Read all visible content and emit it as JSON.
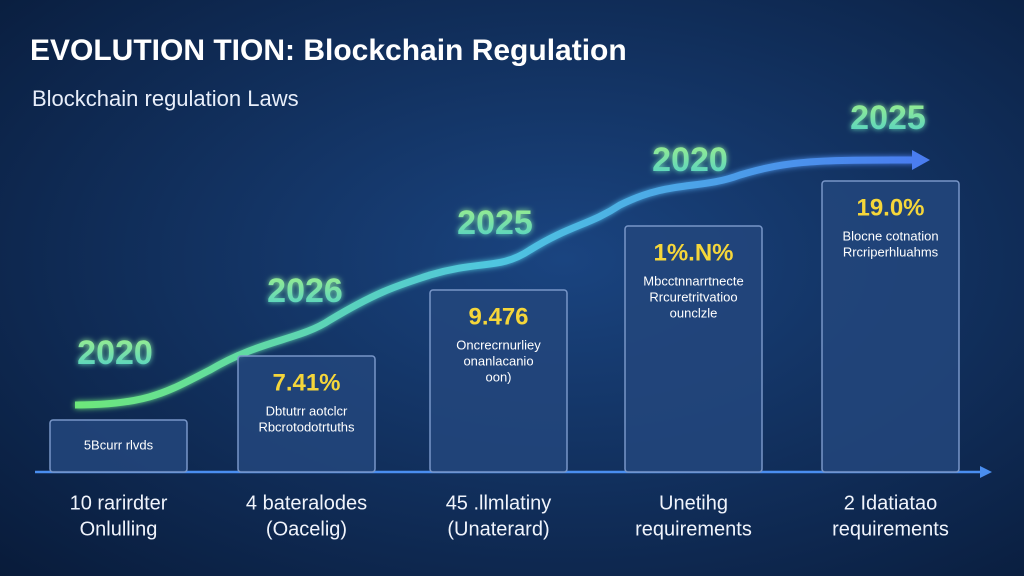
{
  "title": "EVOLUTION TION: Blockchain Regulation",
  "subtitle": "Blockchain regulation Laws",
  "steps": [
    {
      "year": "2020",
      "desc": [
        "5Bcurr rlvds"
      ],
      "label": [
        "10 rarirdter",
        "Onlulling"
      ]
    },
    {
      "year": "2026",
      "value": "7.41%",
      "desc": [
        "Dbtutrr aotclcr",
        "Rbcrotodotrtuths"
      ],
      "label": [
        "4 bateralodes",
        "(Oacelig)"
      ]
    },
    {
      "year": "2025",
      "value": "9.476",
      "desc": [
        "Oncrecrnurliey",
        "onanlacanio",
        "oon)"
      ],
      "label": [
        "45 .llmlatiny",
        "(Unaterard)"
      ]
    },
    {
      "year": "2020",
      "value": "1%.N%",
      "desc": [
        "Mbcctnnarrtnecte",
        "Rrcuretritvatioo",
        "ounclzle"
      ],
      "label": [
        "Unetihg",
        "requirements"
      ]
    },
    {
      "year": "2025",
      "value": "19.0%",
      "desc": [
        "Blocne cotnation",
        "Rrcriperhluahms"
      ],
      "label": [
        "2 Idatiatao",
        "requirements"
      ]
    }
  ]
}
